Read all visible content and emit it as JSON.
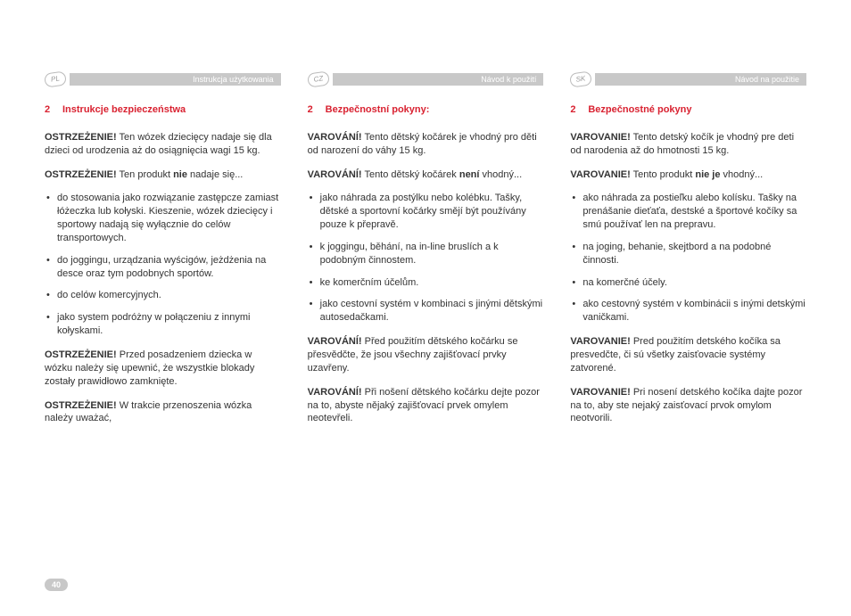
{
  "page_number": "40",
  "columns": [
    {
      "lang_code": "PL",
      "header_text": "Instrukcja użytkowania",
      "section_number": "2",
      "section_title": "Instrukcje bezpieczeństwa",
      "p1_bold": "OSTRZEŻENIE!",
      "p1_text": " Ten wózek dziecięcy nadaje się dla dzieci od urodzenia aż do osiągnięcia wagi 15 kg.",
      "p2_bold": "OSTRZEŻENIE!",
      "p2_text_a": " Ten produkt ",
      "p2_text_bold2": "nie",
      "p2_text_b": " nadaje się...",
      "b1": "do stosowania jako rozwiązanie zastępcze zamiast łóżeczka lub kołyski. Kieszenie, wózek dziecięcy i sportowy nadają się wyłącznie do celów transportowych.",
      "b2": "do joggingu, urządzania wyścigów, jeżdżenia na desce oraz tym podobnych sportów.",
      "b3": "do celów komercyjnych.",
      "b4": "jako system podróżny w połączeniu z innymi kołyskami.",
      "p3_bold": "OSTRZEŻENIE!",
      "p3_text": " Przed posadzeniem dziecka w wózku należy się upewnić, że wszystkie blokady zostały prawidłowo zamknięte.",
      "p4_bold": "OSTRZEŻENIE!",
      "p4_text": " W trakcie przenoszenia wózka należy uważać,"
    },
    {
      "lang_code": "CZ",
      "header_text": "Návod k použití",
      "section_number": "2",
      "section_title": "Bezpečnostní pokyny:",
      "p1_bold": "VAROVÁNÍ!",
      "p1_text": " Tento dětský kočárek je vhodný pro děti od narození do váhy 15 kg.",
      "p2_bold": "VAROVÁNÍ!",
      "p2_text_a": " Tento dětský kočárek ",
      "p2_text_bold2": "není",
      "p2_text_b": " vhodný...",
      "b1": "jako náhrada za postýlku nebo kolébku. Tašky, dětské a sportovní kočárky smějí být používány pouze k přepravě.",
      "b2": "k joggingu, běhání, na in-line bruslích a k podobným činnostem.",
      "b3": "ke komerčním účelům.",
      "b4": "jako cestovní systém v kombinaci s jinými dětskými autosedačkami.",
      "p3_bold": "VAROVÁNÍ!",
      "p3_text": " Před použitím dětského kočárku se přesvědčte, že jsou všechny zajišťovací prvky uzavřeny.",
      "p4_bold": "VAROVÁNÍ!",
      "p4_text": " Při nošení dětského kočárku dejte pozor na to, abyste nějaký zajišťovací prvek omylem neotevřeli."
    },
    {
      "lang_code": "SK",
      "header_text": "Návod na použitie",
      "section_number": "2",
      "section_title": "Bezpečnostné pokyny",
      "p1_bold": "VAROVANIE!",
      "p1_text": " Tento detský kočík je vhodný pre deti od narodenia až do hmotnosti 15 kg.",
      "p2_bold": "VAROVANIE!",
      "p2_text_a": " Tento produkt ",
      "p2_text_bold2": "nie je",
      "p2_text_b": " vhodný...",
      "b1": "ako náhrada za postieľku alebo kolísku. Tašky na prenášanie dieťaťa, destské a športové kočíky sa smú používať len na prepravu.",
      "b2": "na joging, behanie, skejtbord a na podobné činnosti.",
      "b3": "na komerčné účely.",
      "b4": "ako cestovný systém v kombinácii s inými detskými vaničkami.",
      "p3_bold": "VAROVANIE!",
      "p3_text": " Pred použitím detského kočíka sa presvedčte, či sú všetky zaisťovacie systémy zatvorené.",
      "p4_bold": "VAROVANIE!",
      "p4_text": " Pri nosení detského kočíka dajte pozor na to, aby ste nejaký zaisťovací prvok omylom neotvorili."
    }
  ]
}
